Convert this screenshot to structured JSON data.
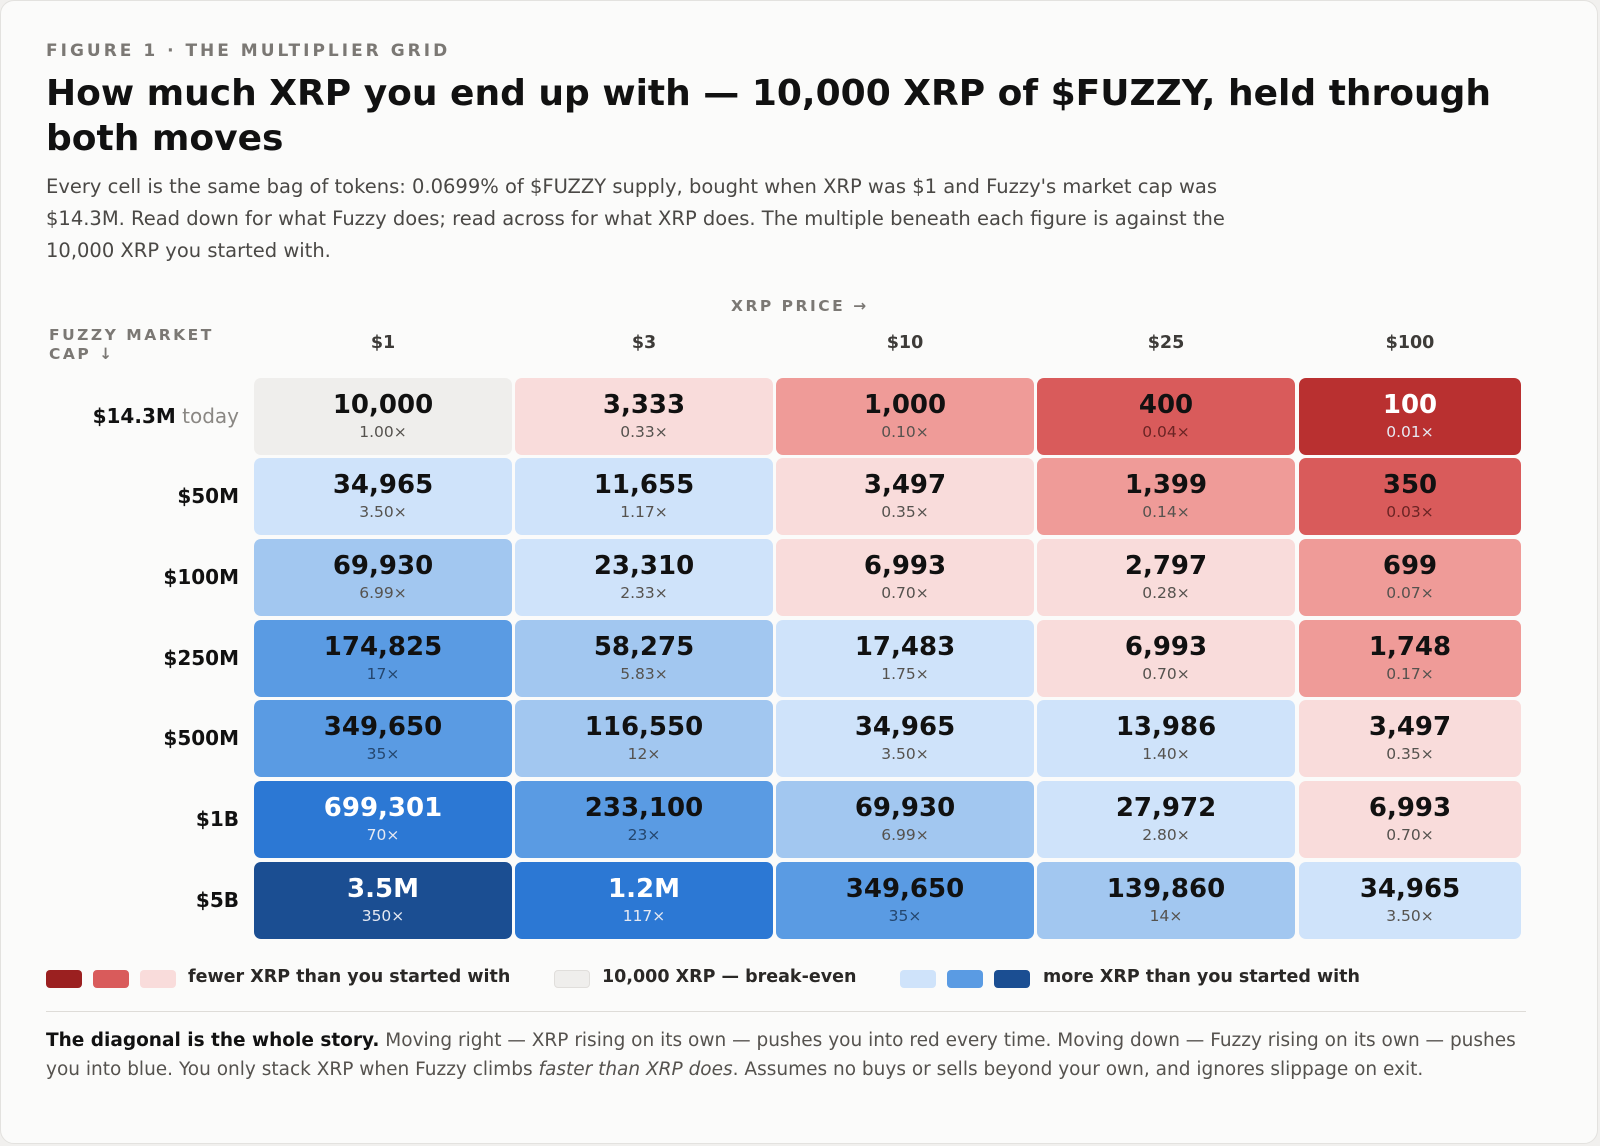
{
  "figure": {
    "eyebrow": "FIGURE 1 · THE MULTIPLIER GRID",
    "title": "How much XRP you end up with — 10,000 XRP of $FUZZY, held through both moves",
    "subtitle": "Every cell is the same bag of tokens: 0.0699% of $FUZZY supply, bought when XRP was $1 and Fuzzy's market cap was $14.3M. Read down for what Fuzzy does; read across for what XRP does. The multiple beneath each figure is against the 10,000 XRP you started with.",
    "footnote": {
      "lead": "The diagonal is the whole story.",
      "part1": " Moving right — XRP rising on its own — pushes you into red every time. Moving down — Fuzzy rising on its own — pushes you into blue. You only stack XRP when Fuzzy climbs ",
      "emph": "faster than XRP does",
      "part2": ". Assumes no buys or sells beyond your own, and ignores slippage on exit."
    }
  },
  "legend": {
    "red_label": "fewer XRP than you started with",
    "neutral_label": "10,000 XRP — break-even",
    "blue_label": "more XRP than you started with"
  },
  "colors": {
    "neutral": "#efeeec",
    "red": [
      "#f9dcdb",
      "#ef9b98",
      "#d95b5b",
      "#b93030"
    ],
    "blue": [
      "#cfe3fa",
      "#a2c7f0",
      "#5a9be3",
      "#2c78d4",
      "#1b4e92"
    ],
    "legend_red": [
      "#9b2020",
      "#d95b5b",
      "#f9dcdb"
    ],
    "legend_blue": [
      "#cfe3fa",
      "#5a9be3",
      "#1b4e92"
    ]
  },
  "chart_data": {
    "type": "table",
    "title": "How much XRP you end up with — 10,000 XRP of $FUZZY, held through both moves",
    "column_axis_label": "XRP PRICE →",
    "row_axis_label": "FUZZY MARKET CAP ↓",
    "columns": [
      "$1",
      "$3",
      "$10",
      "$25",
      "$100"
    ],
    "rows": [
      {
        "label": "$14.3M",
        "note": "today",
        "cells": [
          {
            "value": "10,000",
            "multiple": "1.00×",
            "fill": "neutral"
          },
          {
            "value": "3,333",
            "multiple": "0.33×",
            "fill": "red-1"
          },
          {
            "value": "1,000",
            "multiple": "0.10×",
            "fill": "red-2"
          },
          {
            "value": "400",
            "multiple": "0.04×",
            "fill": "red-3"
          },
          {
            "value": "100",
            "multiple": "0.01×",
            "fill": "red-4"
          }
        ]
      },
      {
        "label": "$50M",
        "note": "",
        "cells": [
          {
            "value": "34,965",
            "multiple": "3.50×",
            "fill": "blue-1"
          },
          {
            "value": "11,655",
            "multiple": "1.17×",
            "fill": "blue-1"
          },
          {
            "value": "3,497",
            "multiple": "0.35×",
            "fill": "red-1"
          },
          {
            "value": "1,399",
            "multiple": "0.14×",
            "fill": "red-2"
          },
          {
            "value": "350",
            "multiple": "0.03×",
            "fill": "red-3"
          }
        ]
      },
      {
        "label": "$100M",
        "note": "",
        "cells": [
          {
            "value": "69,930",
            "multiple": "6.99×",
            "fill": "blue-2"
          },
          {
            "value": "23,310",
            "multiple": "2.33×",
            "fill": "blue-1"
          },
          {
            "value": "6,993",
            "multiple": "0.70×",
            "fill": "red-1"
          },
          {
            "value": "2,797",
            "multiple": "0.28×",
            "fill": "red-1"
          },
          {
            "value": "699",
            "multiple": "0.07×",
            "fill": "red-2"
          }
        ]
      },
      {
        "label": "$250M",
        "note": "",
        "cells": [
          {
            "value": "174,825",
            "multiple": "17×",
            "fill": "blue-3"
          },
          {
            "value": "58,275",
            "multiple": "5.83×",
            "fill": "blue-2"
          },
          {
            "value": "17,483",
            "multiple": "1.75×",
            "fill": "blue-1"
          },
          {
            "value": "6,993",
            "multiple": "0.70×",
            "fill": "red-1"
          },
          {
            "value": "1,748",
            "multiple": "0.17×",
            "fill": "red-2"
          }
        ]
      },
      {
        "label": "$500M",
        "note": "",
        "cells": [
          {
            "value": "349,650",
            "multiple": "35×",
            "fill": "blue-3"
          },
          {
            "value": "116,550",
            "multiple": "12×",
            "fill": "blue-2"
          },
          {
            "value": "34,965",
            "multiple": "3.50×",
            "fill": "blue-1"
          },
          {
            "value": "13,986",
            "multiple": "1.40×",
            "fill": "blue-1"
          },
          {
            "value": "3,497",
            "multiple": "0.35×",
            "fill": "red-1"
          }
        ]
      },
      {
        "label": "$1B",
        "note": "",
        "cells": [
          {
            "value": "699,301",
            "multiple": "70×",
            "fill": "blue-4"
          },
          {
            "value": "233,100",
            "multiple": "23×",
            "fill": "blue-3"
          },
          {
            "value": "69,930",
            "multiple": "6.99×",
            "fill": "blue-2"
          },
          {
            "value": "27,972",
            "multiple": "2.80×",
            "fill": "blue-1"
          },
          {
            "value": "6,993",
            "multiple": "0.70×",
            "fill": "red-1"
          }
        ]
      },
      {
        "label": "$5B",
        "note": "",
        "cells": [
          {
            "value": "3.5M",
            "multiple": "350×",
            "fill": "blue-5"
          },
          {
            "value": "1.2M",
            "multiple": "117×",
            "fill": "blue-4"
          },
          {
            "value": "349,650",
            "multiple": "35×",
            "fill": "blue-3"
          },
          {
            "value": "139,860",
            "multiple": "14×",
            "fill": "blue-2"
          },
          {
            "value": "34,965",
            "multiple": "3.50×",
            "fill": "blue-1"
          }
        ]
      }
    ]
  }
}
